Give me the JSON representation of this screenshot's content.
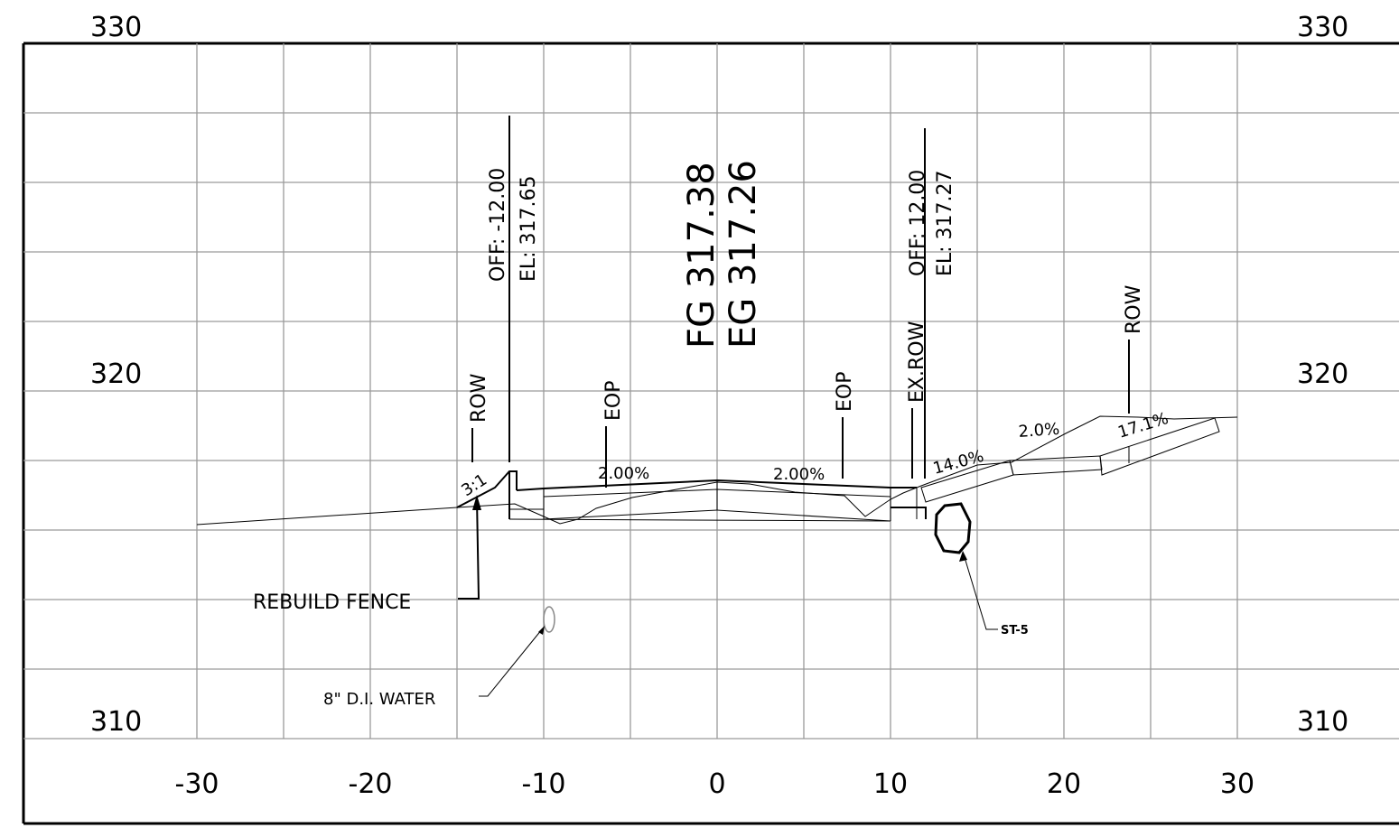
{
  "elevations": {
    "top_left": "330",
    "top_right": "330",
    "mid_left": "320",
    "mid_right": "320",
    "bottom_left": "310",
    "bottom_right": "310"
  },
  "offsets": [
    "-30",
    "-20",
    "-10",
    "0",
    "10",
    "20",
    "30"
  ],
  "grades": {
    "fg": "FG 317.38",
    "eg": "EG 317.26"
  },
  "left_callout": {
    "offset": "OFF: -12.00",
    "elevation": "EL: 317.65"
  },
  "right_callout": {
    "offset": "OFF: 12.00",
    "elevation": "EL: 317.27"
  },
  "markers": {
    "row_left": "ROW",
    "eop_left": "EOP",
    "eop_right": "EOP",
    "ex_row": "EX.ROW",
    "row_right": "ROW"
  },
  "slopes": {
    "left_side": "3:1",
    "left_lane": "2.00%",
    "right_lane": "2.00%",
    "right_1": "14.0%",
    "right_2": "2.0%",
    "right_3": "17.1%"
  },
  "notes": {
    "fence": "REBUILD FENCE",
    "water": "8\" D.I. WATER",
    "storm": "ST-5"
  }
}
